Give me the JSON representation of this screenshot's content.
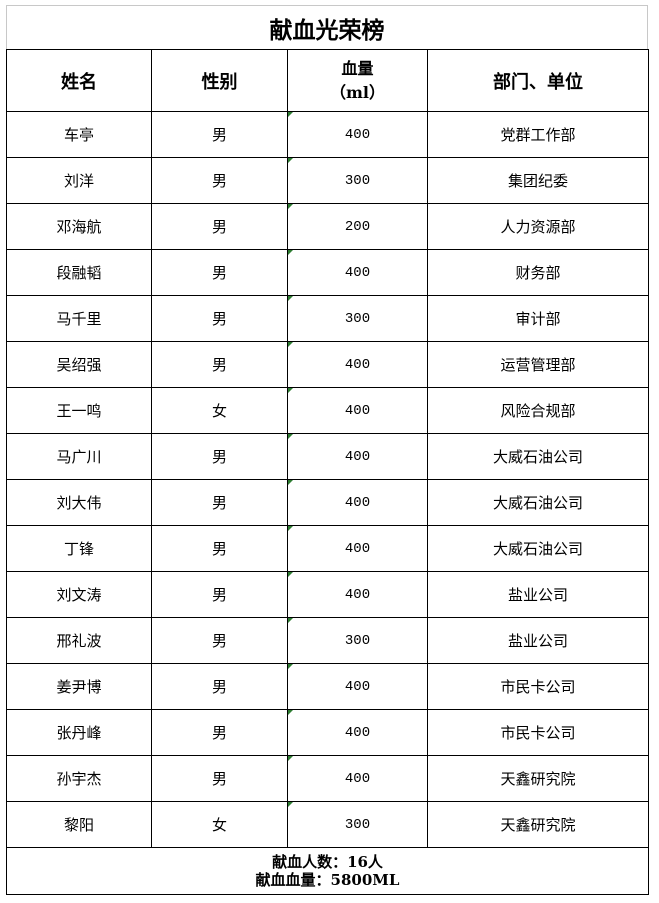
{
  "title": "献血光荣榜",
  "headers": {
    "name": "姓名",
    "gender": "性别",
    "volume_line1": "血量",
    "volume_line2": "（ml）",
    "dept": "部门、单位"
  },
  "rows": [
    {
      "name": "车亭",
      "gender": "男",
      "volume": "400",
      "dept": "党群工作部"
    },
    {
      "name": "刘洋",
      "gender": "男",
      "volume": "300",
      "dept": "集团纪委"
    },
    {
      "name": "邓海航",
      "gender": "男",
      "volume": "200",
      "dept": "人力资源部"
    },
    {
      "name": "段融韬",
      "gender": "男",
      "volume": "400",
      "dept": "财务部"
    },
    {
      "name": "马千里",
      "gender": "男",
      "volume": "300",
      "dept": "审计部"
    },
    {
      "name": "吴绍强",
      "gender": "男",
      "volume": "400",
      "dept": "运营管理部"
    },
    {
      "name": "王一鸣",
      "gender": "女",
      "volume": "400",
      "dept": "风险合规部"
    },
    {
      "name": "马广川",
      "gender": "男",
      "volume": "400",
      "dept": "大威石油公司"
    },
    {
      "name": "刘大伟",
      "gender": "男",
      "volume": "400",
      "dept": "大威石油公司"
    },
    {
      "name": "丁锋",
      "gender": "男",
      "volume": "400",
      "dept": "大威石油公司"
    },
    {
      "name": "刘文涛",
      "gender": "男",
      "volume": "400",
      "dept": "盐业公司"
    },
    {
      "name": "邢礼波",
      "gender": "男",
      "volume": "300",
      "dept": "盐业公司"
    },
    {
      "name": "姜尹博",
      "gender": "男",
      "volume": "400",
      "dept": "市民卡公司"
    },
    {
      "name": "张丹峰",
      "gender": "男",
      "volume": "400",
      "dept": "市民卡公司"
    },
    {
      "name": "孙宇杰",
      "gender": "男",
      "volume": "400",
      "dept": "天鑫研究院"
    },
    {
      "name": "黎阳",
      "gender": "女",
      "volume": "300",
      "dept": "天鑫研究院"
    }
  ],
  "footer": {
    "count": "献血人数：16人",
    "total": "献血血量：5800ML"
  },
  "colors": {
    "text_indicator": "#2e7d32"
  }
}
